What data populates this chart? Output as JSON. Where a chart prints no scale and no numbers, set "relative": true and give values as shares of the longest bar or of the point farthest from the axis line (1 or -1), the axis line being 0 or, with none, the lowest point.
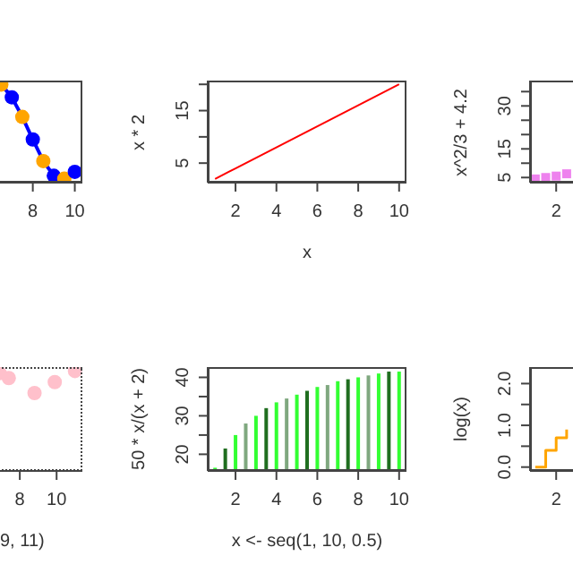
{
  "chart_data": [
    {
      "type": "line",
      "x": [
        6.5,
        7,
        7.5,
        8,
        8.5,
        9,
        9.5,
        10
      ],
      "relative": true,
      "xlim": [
        0.64,
        10.36
      ],
      "xticks": [
        8,
        10
      ],
      "marker": "circle",
      "series": [
        {
          "color": "#0000ff",
          "colors": [
            "#ffa500",
            "#0000ff",
            "#ffa500",
            "#0000ff",
            "#ffa500",
            "#0000ff",
            "#ffa500",
            "#0000ff"
          ],
          "values": [
            1,
            0.87,
            0.67,
            0.44,
            0.22,
            0.07,
            0.04,
            0.11
          ]
        }
      ]
    },
    {
      "type": "line",
      "x": [
        1,
        2,
        3,
        4,
        5,
        6,
        7,
        8,
        9,
        10
      ],
      "values": [
        2,
        4,
        6,
        8,
        10,
        12,
        14,
        16,
        18,
        20
      ],
      "color": "#ff0000",
      "marker": "none",
      "xlim": [
        0.64,
        10.36
      ],
      "xticks": [
        2,
        4,
        6,
        8,
        10
      ],
      "ylim": [
        1.28,
        20.72
      ],
      "yticks": [
        5,
        {
          "value": 10,
          "label": null
        },
        15,
        {
          "value": 20,
          "label": null
        }
      ],
      "xlabel": "x",
      "ylabel": "x * 2"
    },
    {
      "type": "scatter",
      "categories": [
        null,
        null,
        "2",
        null,
        null,
        null,
        null,
        null,
        null,
        null,
        null,
        null,
        null,
        null,
        null,
        null,
        null,
        null,
        null
      ],
      "values": [
        4.5,
        5,
        5.5,
        6.3,
        null,
        null,
        null,
        null,
        null,
        null,
        null,
        null,
        null,
        null,
        null,
        null,
        null,
        null,
        null
      ],
      "color": "#ee82ee",
      "marker": "square",
      "ylim": [
        3.21,
        38.85
      ],
      "yticks": [
        5,
        {
          "value": 10,
          "label": null
        },
        15,
        {
          "value": 20,
          "label": null
        },
        {
          "value": 25,
          "label": null
        },
        30,
        {
          "value": 35,
          "label": null
        }
      ],
      "ylabel": "x^2/3 + 4.2"
    },
    {
      "type": "scatter",
      "x": [
        6.9,
        7.4,
        8.8,
        9.9,
        11
      ],
      "values": [
        0.98,
        0.93,
        0.78,
        0.89,
        1
      ],
      "relative": true,
      "color": "#ffc0cb",
      "marker": "circle",
      "xlim": [
        0.6,
        11.4
      ],
      "xticks": [
        8,
        10
      ],
      "xlabel": "9, 11)"
    },
    {
      "type": "bar",
      "x": [
        1,
        1.5,
        2,
        2.5,
        3,
        3.5,
        4,
        4.5,
        5,
        5.5,
        6,
        6.5,
        7,
        7.5,
        8,
        8.5,
        9,
        9.5,
        10
      ],
      "values": [
        16.5,
        21.5,
        25,
        28,
        30,
        32,
        33.5,
        34.5,
        35.5,
        36.5,
        37.5,
        38,
        39,
        39.5,
        40,
        40.5,
        41,
        41.5,
        41.5
      ],
      "colors": [
        "#33ff33",
        "#1f6e1f",
        "#33ff33",
        "#7fa87f",
        "#33ff33",
        "#1f6e1f",
        "#33ff33",
        "#7fa87f",
        "#33ff33",
        "#1f6e1f",
        "#33ff33",
        "#7fa87f",
        "#33ff33",
        "#1f6e1f",
        "#33ff33",
        "#7fa87f",
        "#33ff33",
        "#1f6e1f",
        "#33ff33"
      ],
      "xlim": [
        0.64,
        10.36
      ],
      "xticks": [
        2,
        4,
        6,
        8,
        10
      ],
      "ylim": [
        15.67,
        42.67
      ],
      "yticks": [
        20,
        {
          "value": 25,
          "label": null
        },
        30,
        {
          "value": 35,
          "label": null
        },
        40
      ],
      "xlabel": "x <- seq(1, 10, 0.5)",
      "ylabel": "50 * x/(x + 2)"
    },
    {
      "type": "step",
      "categories": [
        null,
        null,
        "2",
        null,
        null,
        null,
        null,
        null,
        null,
        null,
        null,
        null,
        null,
        null,
        null,
        null,
        null,
        null,
        null
      ],
      "values": [
        0,
        0.4,
        0.7,
        0.9,
        null,
        null,
        null,
        null,
        null,
        null,
        null,
        null,
        null,
        null,
        null,
        null,
        null,
        null,
        null
      ],
      "color": "#ffa500",
      "marker": "none",
      "ylim": [
        -0.092,
        2.395
      ],
      "yticks": [
        {
          "value": 0,
          "label": "0.0"
        },
        {
          "value": 0.5,
          "label": null
        },
        {
          "value": 1,
          "label": "1.0"
        },
        {
          "value": 1.5,
          "label": null
        },
        {
          "value": 2,
          "label": "2.0"
        }
      ],
      "ylabel": "log(x)"
    }
  ]
}
